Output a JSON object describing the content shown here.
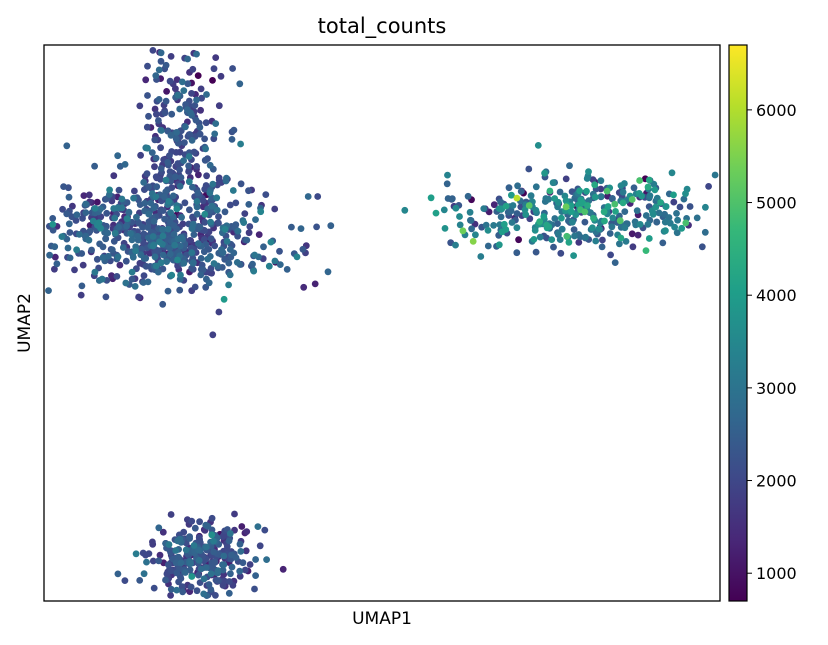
{
  "chart_data": {
    "type": "scatter",
    "title": "total_counts",
    "xlabel": "UMAP1",
    "ylabel": "UMAP2",
    "xlim": [
      0,
      1
    ],
    "ylim": [
      0,
      1
    ],
    "grid": false,
    "colorbar": {
      "colormap": "viridis",
      "range": [
        700,
        6700
      ],
      "ticks": [
        1000,
        2000,
        3000,
        4000,
        5000,
        6000
      ],
      "tick_labels": [
        "1000",
        "2000",
        "3000",
        "4000",
        "5000",
        "6000"
      ],
      "stops": [
        "#440154",
        "#482878",
        "#3e4989",
        "#31688e",
        "#26828e",
        "#1f9e89",
        "#35b779",
        "#6ece58",
        "#b5de2b",
        "#fde725"
      ]
    },
    "clusters": [
      {
        "label": "upper-left",
        "center": [
          0.17,
          0.66
        ],
        "spread": [
          0.085,
          0.05
        ],
        "count": 650,
        "value_mean": 2300,
        "value_sd": 500
      },
      {
        "label": "upper-left-peak",
        "center": [
          0.2,
          0.82
        ],
        "spread": [
          0.03,
          0.09
        ],
        "count": 250,
        "value_mean": 2100,
        "value_sd": 450
      },
      {
        "label": "upper-right",
        "center": [
          0.8,
          0.7
        ],
        "spread": [
          0.1,
          0.035
        ],
        "count": 380,
        "value_mean": 3000,
        "value_sd": 900
      },
      {
        "label": "bottom",
        "center": [
          0.23,
          0.08
        ],
        "spread": [
          0.04,
          0.035
        ],
        "count": 300,
        "value_mean": 2100,
        "value_sd": 500
      }
    ]
  }
}
